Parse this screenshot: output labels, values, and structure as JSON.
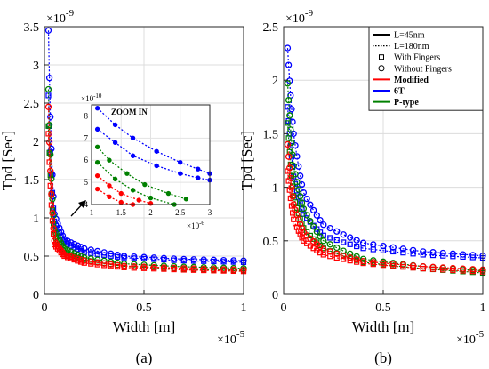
{
  "chart_data": [
    {
      "type": "line",
      "panel_label": "(a)",
      "xlabel": "Width [m]",
      "ylabel": "Tpd [Sec]",
      "x_multiplier": "×10",
      "x_multiplier_exp": "-5",
      "y_multiplier": "×10",
      "y_multiplier_exp": "-9",
      "xlim": [
        0,
        1
      ],
      "ylim": [
        0,
        3.5
      ],
      "xticks": [
        "0",
        "0.5",
        "1"
      ],
      "yticks": [
        "0",
        "0.5",
        "1",
        "1.5",
        "2",
        "2.5",
        "3",
        "3.5"
      ],
      "grid": true,
      "series": [
        {
          "color": "#0000ff",
          "marker": "circle",
          "values": [
            [
              0.02,
              3.45
            ],
            [
              0.05,
              1.05
            ],
            [
              0.1,
              0.72
            ],
            [
              0.2,
              0.6
            ],
            [
              0.4,
              0.5
            ],
            [
              0.7,
              0.46
            ],
            [
              1.0,
              0.44
            ]
          ]
        },
        {
          "color": "#0000ff",
          "marker": "square",
          "values": [
            [
              0.02,
              2.6
            ],
            [
              0.05,
              0.95
            ],
            [
              0.1,
              0.68
            ],
            [
              0.2,
              0.55
            ],
            [
              0.4,
              0.48
            ],
            [
              0.7,
              0.44
            ],
            [
              1.0,
              0.42
            ]
          ]
        },
        {
          "color": "#008000",
          "marker": "circle",
          "values": [
            [
              0.02,
              2.68
            ],
            [
              0.05,
              0.85
            ],
            [
              0.1,
              0.6
            ],
            [
              0.2,
              0.48
            ],
            [
              0.4,
              0.4
            ],
            [
              0.7,
              0.36
            ],
            [
              1.0,
              0.34
            ]
          ]
        },
        {
          "color": "#008000",
          "marker": "square",
          "values": [
            [
              0.02,
              2.2
            ],
            [
              0.05,
              0.78
            ],
            [
              0.1,
              0.55
            ],
            [
              0.2,
              0.45
            ],
            [
              0.4,
              0.37
            ],
            [
              0.7,
              0.33
            ],
            [
              1.0,
              0.31
            ]
          ]
        },
        {
          "color": "#ff0000",
          "marker": "circle",
          "values": [
            [
              0.02,
              2.45
            ],
            [
              0.05,
              0.7
            ],
            [
              0.1,
              0.52
            ],
            [
              0.2,
              0.44
            ],
            [
              0.4,
              0.37
            ],
            [
              0.7,
              0.34
            ],
            [
              1.0,
              0.32
            ]
          ]
        },
        {
          "color": "#ff0000",
          "marker": "square",
          "values": [
            [
              0.02,
              2.1
            ],
            [
              0.05,
              0.65
            ],
            [
              0.1,
              0.5
            ],
            [
              0.2,
              0.41
            ],
            [
              0.4,
              0.35
            ],
            [
              0.7,
              0.32
            ],
            [
              1.0,
              0.3
            ]
          ]
        }
      ],
      "inset": {
        "title": "ZOOM IN",
        "xlim": [
          1,
          3
        ],
        "ylim": [
          4,
          8.5
        ],
        "xticks": [
          "1",
          "1.5",
          "2",
          "2.5",
          "3"
        ],
        "yticks": [
          "4",
          "5",
          "6",
          "7",
          "8"
        ],
        "x_multiplier": "×10",
        "x_multiplier_exp": "-6",
        "y_multiplier": "×10",
        "y_multiplier_exp": "-10",
        "series": [
          {
            "color": "#0000ff",
            "values": [
              [
                1.1,
                8.35
              ],
              [
                1.4,
                7.6
              ],
              [
                1.7,
                7.0
              ],
              [
                2.1,
                6.4
              ],
              [
                2.5,
                5.9
              ],
              [
                2.8,
                5.6
              ],
              [
                3.0,
                5.4
              ]
            ]
          },
          {
            "color": "#0000ff",
            "values": [
              [
                1.1,
                7.4
              ],
              [
                1.4,
                6.8
              ],
              [
                1.7,
                6.2
              ],
              [
                2.1,
                5.75
              ],
              [
                2.5,
                5.4
              ],
              [
                2.8,
                5.2
              ],
              [
                3.0,
                5.1
              ]
            ]
          },
          {
            "color": "#008000",
            "values": [
              [
                1.1,
                6.6
              ],
              [
                1.3,
                6.0
              ],
              [
                1.6,
                5.4
              ],
              [
                1.9,
                4.9
              ],
              [
                2.3,
                4.5
              ],
              [
                2.6,
                4.25
              ]
            ]
          },
          {
            "color": "#008000",
            "values": [
              [
                1.1,
                5.9
              ],
              [
                1.4,
                5.15
              ],
              [
                1.7,
                4.65
              ],
              [
                2.0,
                4.3
              ],
              [
                2.4,
                4.0
              ]
            ]
          },
          {
            "color": "#ff0000",
            "values": [
              [
                1.1,
                5.3
              ],
              [
                1.3,
                4.85
              ],
              [
                1.5,
                4.5
              ],
              [
                1.8,
                4.2
              ],
              [
                2.0,
                4.05
              ]
            ]
          },
          {
            "color": "#ff0000",
            "values": [
              [
                1.1,
                4.7
              ],
              [
                1.3,
                4.35
              ],
              [
                1.5,
                4.1
              ],
              [
                1.7,
                4.0
              ]
            ]
          }
        ]
      }
    },
    {
      "type": "line",
      "panel_label": "(b)",
      "xlabel": "Width [m]",
      "ylabel": "Tpd [Sec]",
      "x_multiplier": "×10",
      "x_multiplier_exp": "-5",
      "y_multiplier": "×10",
      "y_multiplier_exp": "-9",
      "xlim": [
        0,
        1
      ],
      "ylim": [
        0,
        2.5
      ],
      "xticks": [
        "0",
        "0.5",
        "1"
      ],
      "yticks": [
        "0",
        "0.5",
        "1",
        "1.5",
        "2",
        "2.5"
      ],
      "grid": true,
      "legend": {
        "placement": "top-right",
        "entries": [
          {
            "label": "L=45nm",
            "style": "solid",
            "color": "#000000"
          },
          {
            "label": "L=180nm",
            "style": "dotted",
            "color": "#000000"
          },
          {
            "label": "With Fingers",
            "style": "square-marker",
            "color": "#000000"
          },
          {
            "label": "Without Fingers",
            "style": "circle-marker",
            "color": "#000000"
          },
          {
            "label": "Modified",
            "style": "solid",
            "color": "#ff0000"
          },
          {
            "label": "6T",
            "style": "solid",
            "color": "#0000ff"
          },
          {
            "label": "P-type",
            "style": "solid",
            "color": "#008000"
          }
        ]
      },
      "series": [
        {
          "color": "#0000ff",
          "marker": "circle",
          "values": [
            [
              0.02,
              2.3
            ],
            [
              0.05,
              1.5
            ],
            [
              0.1,
              0.95
            ],
            [
              0.2,
              0.65
            ],
            [
              0.4,
              0.48
            ],
            [
              0.7,
              0.4
            ],
            [
              1.0,
              0.36
            ]
          ]
        },
        {
          "color": "#0000ff",
          "marker": "square",
          "values": [
            [
              0.02,
              1.75
            ],
            [
              0.05,
              1.1
            ],
            [
              0.1,
              0.75
            ],
            [
              0.2,
              0.55
            ],
            [
              0.4,
              0.43
            ],
            [
              0.7,
              0.37
            ],
            [
              1.0,
              0.34
            ]
          ]
        },
        {
          "color": "#008000",
          "marker": "circle",
          "values": [
            [
              0.02,
              1.97
            ],
            [
              0.05,
              1.2
            ],
            [
              0.1,
              0.8
            ],
            [
              0.2,
              0.5
            ],
            [
              0.4,
              0.33
            ],
            [
              0.7,
              0.26
            ],
            [
              1.0,
              0.22
            ]
          ]
        },
        {
          "color": "#008000",
          "marker": "square",
          "values": [
            [
              0.02,
              1.6
            ],
            [
              0.05,
              0.92
            ],
            [
              0.1,
              0.62
            ],
            [
              0.2,
              0.43
            ],
            [
              0.4,
              0.3
            ],
            [
              0.7,
              0.24
            ],
            [
              1.0,
              0.2
            ]
          ]
        },
        {
          "color": "#ff0000",
          "marker": "circle",
          "values": [
            [
              0.02,
              1.4
            ],
            [
              0.05,
              0.84
            ],
            [
              0.1,
              0.58
            ],
            [
              0.2,
              0.42
            ],
            [
              0.4,
              0.31
            ],
            [
              0.7,
              0.26
            ],
            [
              1.0,
              0.23
            ]
          ]
        },
        {
          "color": "#ff0000",
          "marker": "square",
          "values": [
            [
              0.02,
              1.15
            ],
            [
              0.05,
              0.7
            ],
            [
              0.1,
              0.5
            ],
            [
              0.2,
              0.37
            ],
            [
              0.4,
              0.29
            ],
            [
              0.7,
              0.24
            ],
            [
              1.0,
              0.21
            ]
          ]
        }
      ]
    }
  ]
}
